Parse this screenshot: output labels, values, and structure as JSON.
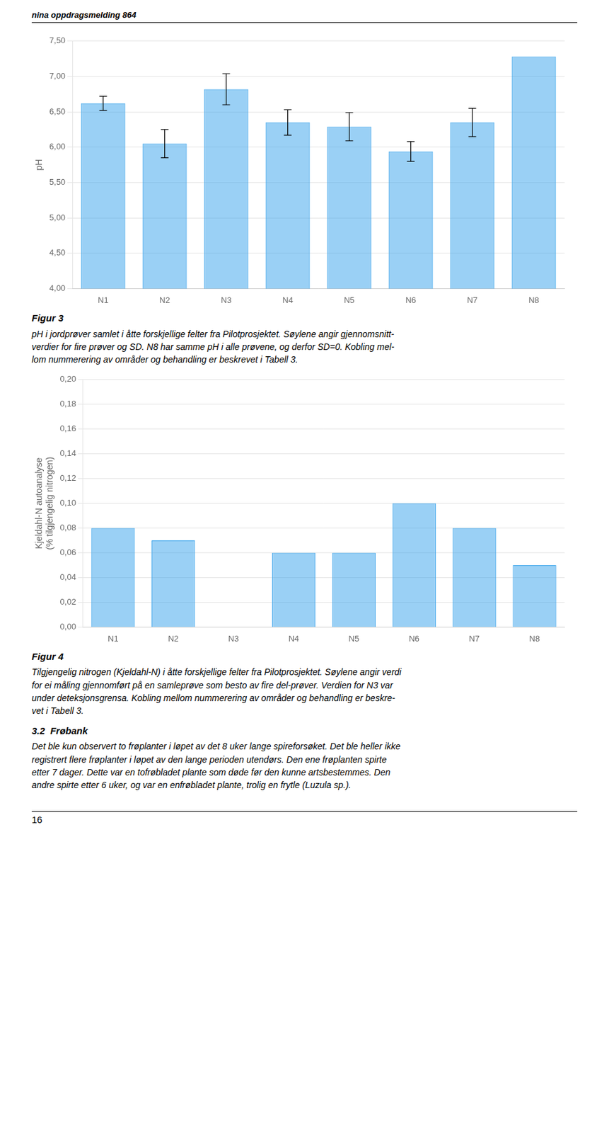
{
  "header": "nina oppdragsmelding 864",
  "footer": "16",
  "chart_data": [
    {
      "type": "bar",
      "ylabel": "pH",
      "categories": [
        "N1",
        "N2",
        "N3",
        "N4",
        "N5",
        "N6",
        "N7",
        "N8"
      ],
      "values": [
        6.62,
        6.05,
        6.82,
        6.35,
        6.29,
        5.94,
        6.35,
        7.28
      ],
      "errors": [
        0.1,
        0.2,
        0.22,
        0.18,
        0.2,
        0.14,
        0.2,
        0.0
      ],
      "ylim": [
        4.0,
        7.5
      ],
      "yticks": [
        {
          "value": 4.0,
          "label": "4,00"
        },
        {
          "value": 4.5,
          "label": "4,50"
        },
        {
          "value": 5.0,
          "label": "5,00"
        },
        {
          "value": 5.5,
          "label": "5,50"
        },
        {
          "value": 6.0,
          "label": "6,00"
        },
        {
          "value": 6.5,
          "label": "6,50"
        },
        {
          "value": 7.0,
          "label": "7,00"
        },
        {
          "value": 7.5,
          "label": "7,50"
        }
      ],
      "grid": true,
      "annotations": [
        "Figur 3",
        "pH i jordprøver samlet i åtte forskjellige felter fra Pilotprosjektet. Søylene angir gjennomsnitt-\nverdier for fire prøver og SD. N8 har samme pH i alle prøvene, og derfor SD=0. Kobling mel-\nlom nummerering av områder og behandling er beskrevet i Tabell 3."
      ]
    },
    {
      "type": "bar",
      "ylabel": [
        "Kjeldahl-N autoanalyse",
        "(% tilgjengelig nitrogen)"
      ],
      "categories": [
        "N1",
        "N2",
        "N3",
        "N4",
        "N5",
        "N6",
        "N7",
        "N8"
      ],
      "values": [
        0.08,
        0.07,
        0.0,
        0.06,
        0.06,
        0.1,
        0.08,
        0.05
      ],
      "ylim": [
        0.0,
        0.2
      ],
      "yticks": [
        {
          "value": 0.0,
          "label": "0,00"
        },
        {
          "value": 0.02,
          "label": "0,02"
        },
        {
          "value": 0.04,
          "label": "0,04"
        },
        {
          "value": 0.06,
          "label": "0,06"
        },
        {
          "value": 0.08,
          "label": "0,08"
        },
        {
          "value": 0.1,
          "label": "0,10"
        },
        {
          "value": 0.12,
          "label": "0,12"
        },
        {
          "value": 0.14,
          "label": "0,14"
        },
        {
          "value": 0.16,
          "label": "0,16"
        },
        {
          "value": 0.18,
          "label": "0,18"
        },
        {
          "value": 0.2,
          "label": "0,20"
        }
      ],
      "grid": true,
      "annotations": [
        "Figur 4",
        "Tilgjengelig nitrogen (Kjeldahl-N) i åtte forskjellige felter fra Pilotprosjektet. Søylene angir verdi\nfor ei måling gjennomført på en samleprøve som besto av fire del-prøver. Verdien for N3 var\nunder deteksjonsgrensa. Kobling mellom nummerering av områder og behandling er beskre-\nvet i Tabell 3.",
        "3.2  Frøbank",
        "Det ble kun observert to frøplanter i løpet av det 8 uker lange spireforsøket. Det ble heller ikke\nregistrert flere frøplanter i løpet av den lange perioden utendørs. Den ene frøplanten spirte\netter 7 dager. Dette var en tofrøbladet plante som døde før den kunne artsbestemmes. Den\nandre spirte etter 6 uker, og var en enfrøbladet plante, trolig en frytle (Luzula sp.)."
      ]
    }
  ]
}
